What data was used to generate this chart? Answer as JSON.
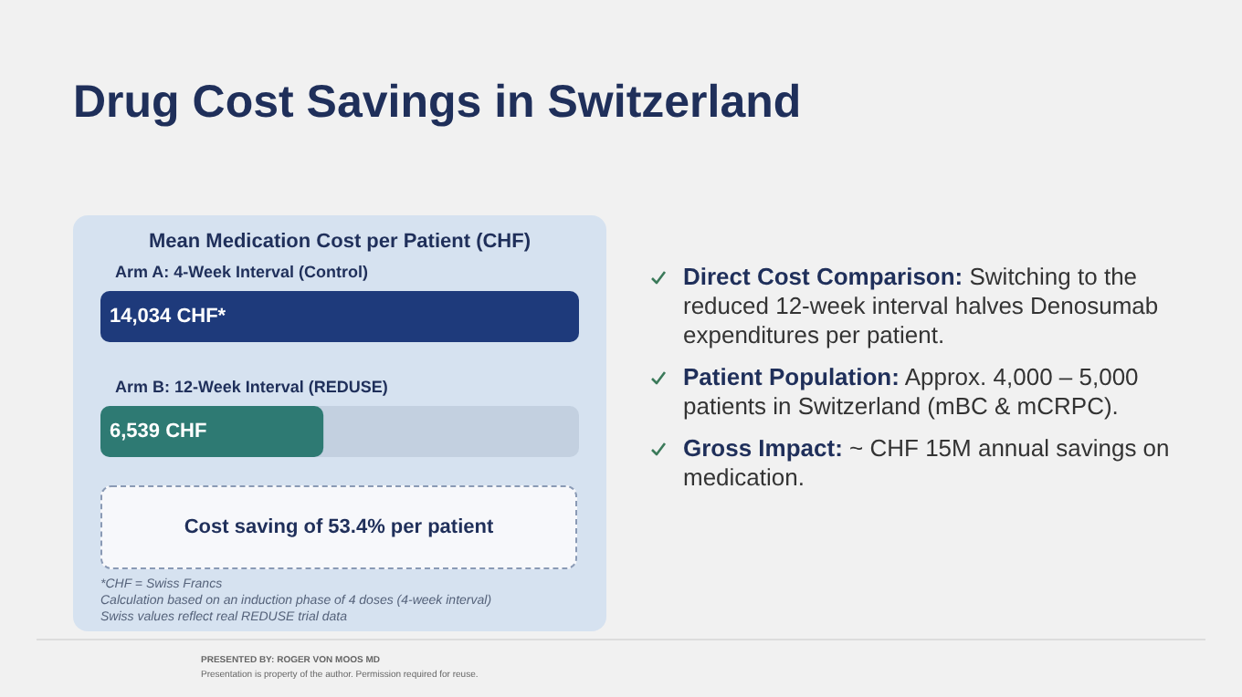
{
  "chart_data": {
    "type": "bar",
    "orientation": "horizontal",
    "title": "Drug Cost Savings in Switzerland",
    "subtitle": "Mean Medication Cost per Patient (CHF)",
    "categories": [
      "Arm A: 4-Week Interval (Control)",
      "Arm B: 12-Week Interval (REDUSE)"
    ],
    "values": [
      14034,
      6539
    ],
    "colors": [
      "#1e3a7b",
      "#2e7a73"
    ],
    "value_labels": [
      "14,034 CHF*",
      "6,539 CHF"
    ],
    "annotations": [
      "Cost saving of 53.4% per patient",
      "*CHF = Swiss Francs",
      "Calculation based on an induction phase of 4 doses (4-week interval)",
      "Swiss values reflect real REDUSE trial data",
      "Direct Cost Comparison: Switching to the reduced 12-week interval halves Denosumab expenditures per patient.",
      "Patient Population: Approx. 4,000 – 5,000 patients in Switzerland (mBC & mCRPC).",
      "Gross Impact: ~ CHF 15M annual savings on medication.",
      "PRESENTED BY: ROGER VON MOOS MD",
      "Presentation is property of the author. Permission required for reuse."
    ]
  }
}
